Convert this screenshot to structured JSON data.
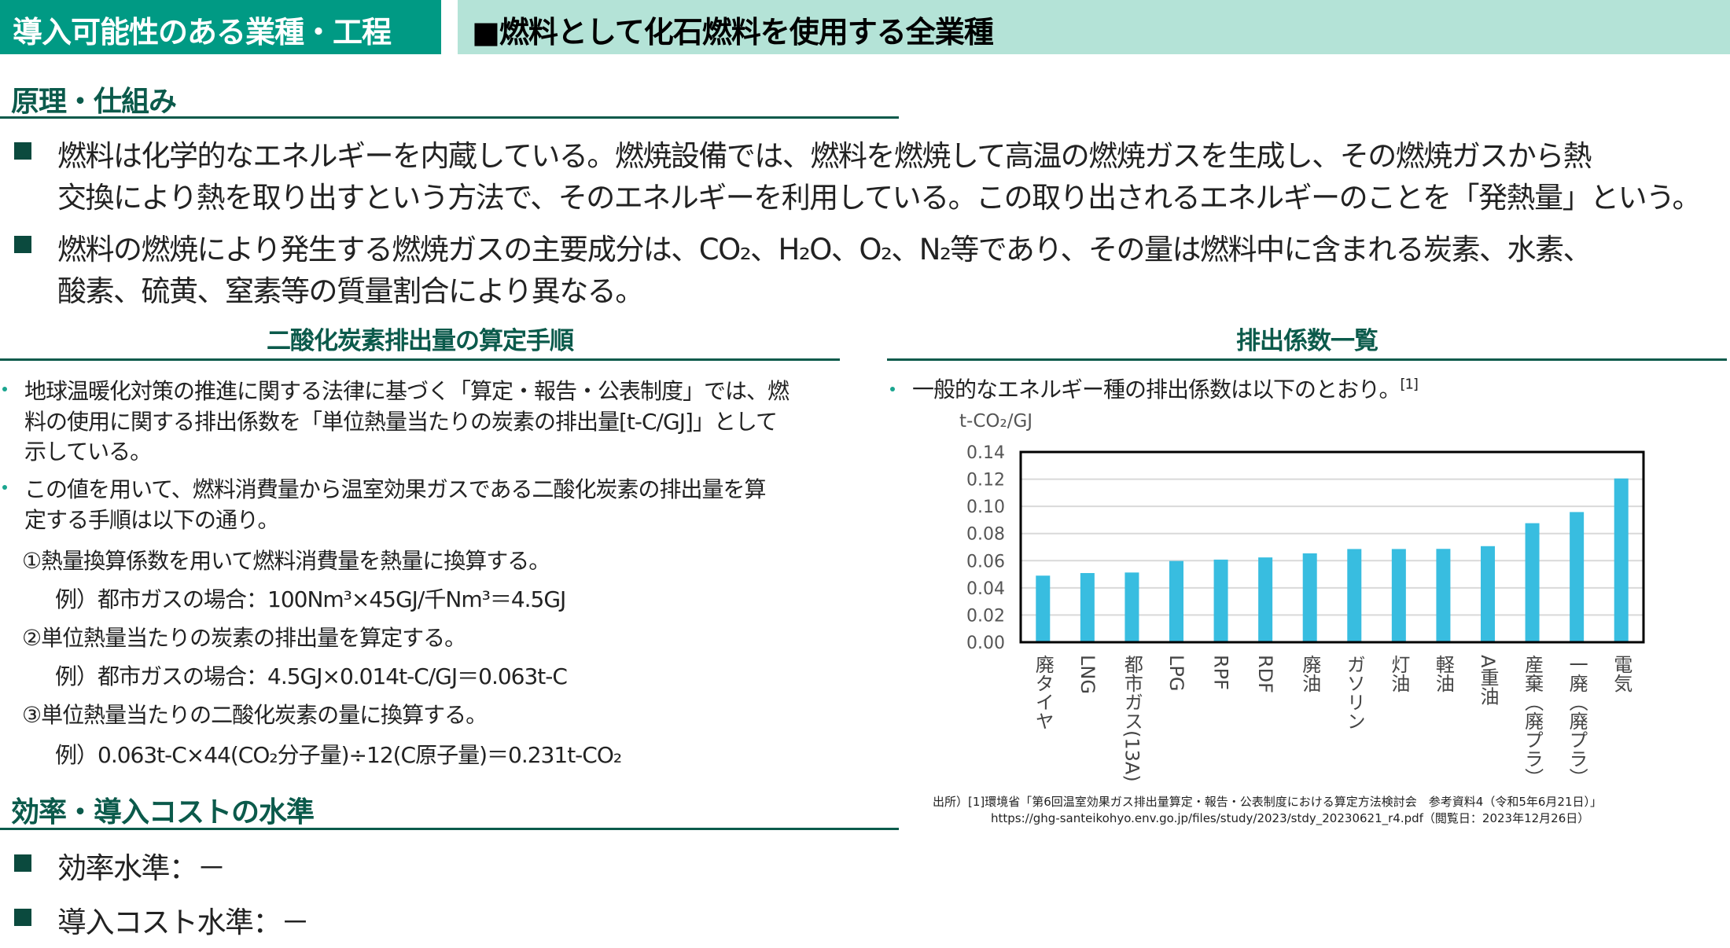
{
  "header": {
    "category_label": "導入可能性のある業種・工程",
    "industries": "■燃料として化石燃料を使用する全業種"
  },
  "principle": {
    "title": "原理・仕組み",
    "bullets": [
      [
        "燃料は化学的なエネルギーを内蔵している。燃焼設備では、燃料を燃焼して高温の燃焼ガスを生成し、その燃焼ガスから熱",
        "交換により熱を取り出すという方法で、そのエネルギーを利用している。この取り出されるエネルギーのことを「発熱量」という。"
      ],
      [
        "燃料の燃焼により発生する燃焼ガスの主要成分は、CO₂、H₂O、O₂、N₂等であり、その量は燃料中に含まれる炭素、水素、",
        "酸素、硫黄、窒素等の質量割合により異なる。"
      ]
    ]
  },
  "procedure": {
    "title": "二酸化炭素排出量の算定手順",
    "bullets": [
      [
        "地球温暖化対策の推進に関する法律に基づく「算定・報告・公表制度」では、燃",
        "料の使用に関する排出係数を「単位熱量当たりの炭素の排出量[t-C/GJ]」として",
        "示している。"
      ],
      [
        "この値を用いて、燃料消費量から温室効果ガスである二酸化炭素の排出量を算",
        "定する手順は以下の通り。"
      ]
    ],
    "steps": [
      {
        "step": "①熱量換算係数を用いて燃料消費量を熱量に換算する。",
        "example": "例）都市ガスの場合：100Nm³×45GJ/千Nm³＝4.5GJ"
      },
      {
        "step": "②単位熱量当たりの炭素の排出量を算定する。",
        "example": "例）都市ガスの場合：4.5GJ×0.014t-C/GJ＝0.063t-C"
      },
      {
        "step": "③単位熱量当たりの二酸化炭素の量に換算する。",
        "example": "例）0.063t-C×44(CO₂分子量)÷12(C原子量)＝0.231t-CO₂"
      }
    ]
  },
  "factors": {
    "title": "排出係数一覧",
    "bullet": "一般的なエネルギー種の排出係数は以下のとおり。",
    "ref": "[1]",
    "source_line1": "出所）[1]環境省「第6回温室効果ガス排出量算定・報告・公表制度における算定方法検討会　参考資料4（令和5年6月21日）」",
    "source_line2": "https://ghg-santeikohyo.env.go.jp/files/study/2023/stdy_20230621_r4.pdf（閲覧日：2023年12月26日）"
  },
  "chart_data": {
    "type": "bar",
    "ylabel": "t-CO₂/GJ",
    "ylim": [
      0,
      0.14
    ],
    "yticks": [
      "0.00",
      "0.02",
      "0.04",
      "0.06",
      "0.08",
      "0.10",
      "0.12",
      "0.14"
    ],
    "grid": true,
    "bar_color": "#38bde0",
    "categories": [
      "廃タイヤ",
      "LNG",
      "都市ガス(13A)",
      "LPG",
      "RPF",
      "RDF",
      "廃油",
      "ガソリン",
      "灯油",
      "軽油",
      "A重油",
      "産業(廃プラ)",
      "一廃(廃プラ)",
      "電気"
    ],
    "category_labels": [
      "廃タイヤ",
      "LNG",
      "都市ガス(13A)",
      "LPG",
      "RPF",
      "RDF",
      "廃油",
      "ガソリン",
      "灯油",
      "軽油",
      "A重油",
      "産棄（廃プラ）",
      "一廃（廃プラ）",
      "電気"
    ],
    "values": [
      0.049,
      0.0509,
      0.0513,
      0.0598,
      0.0608,
      0.0624,
      0.0654,
      0.0686,
      0.0686,
      0.0687,
      0.0707,
      0.0876,
      0.0958,
      0.1205
    ]
  },
  "cost": {
    "title": "効率・導入コストの水準",
    "efficiency": "効率水準：－",
    "cost": "導入コスト水準：－"
  }
}
